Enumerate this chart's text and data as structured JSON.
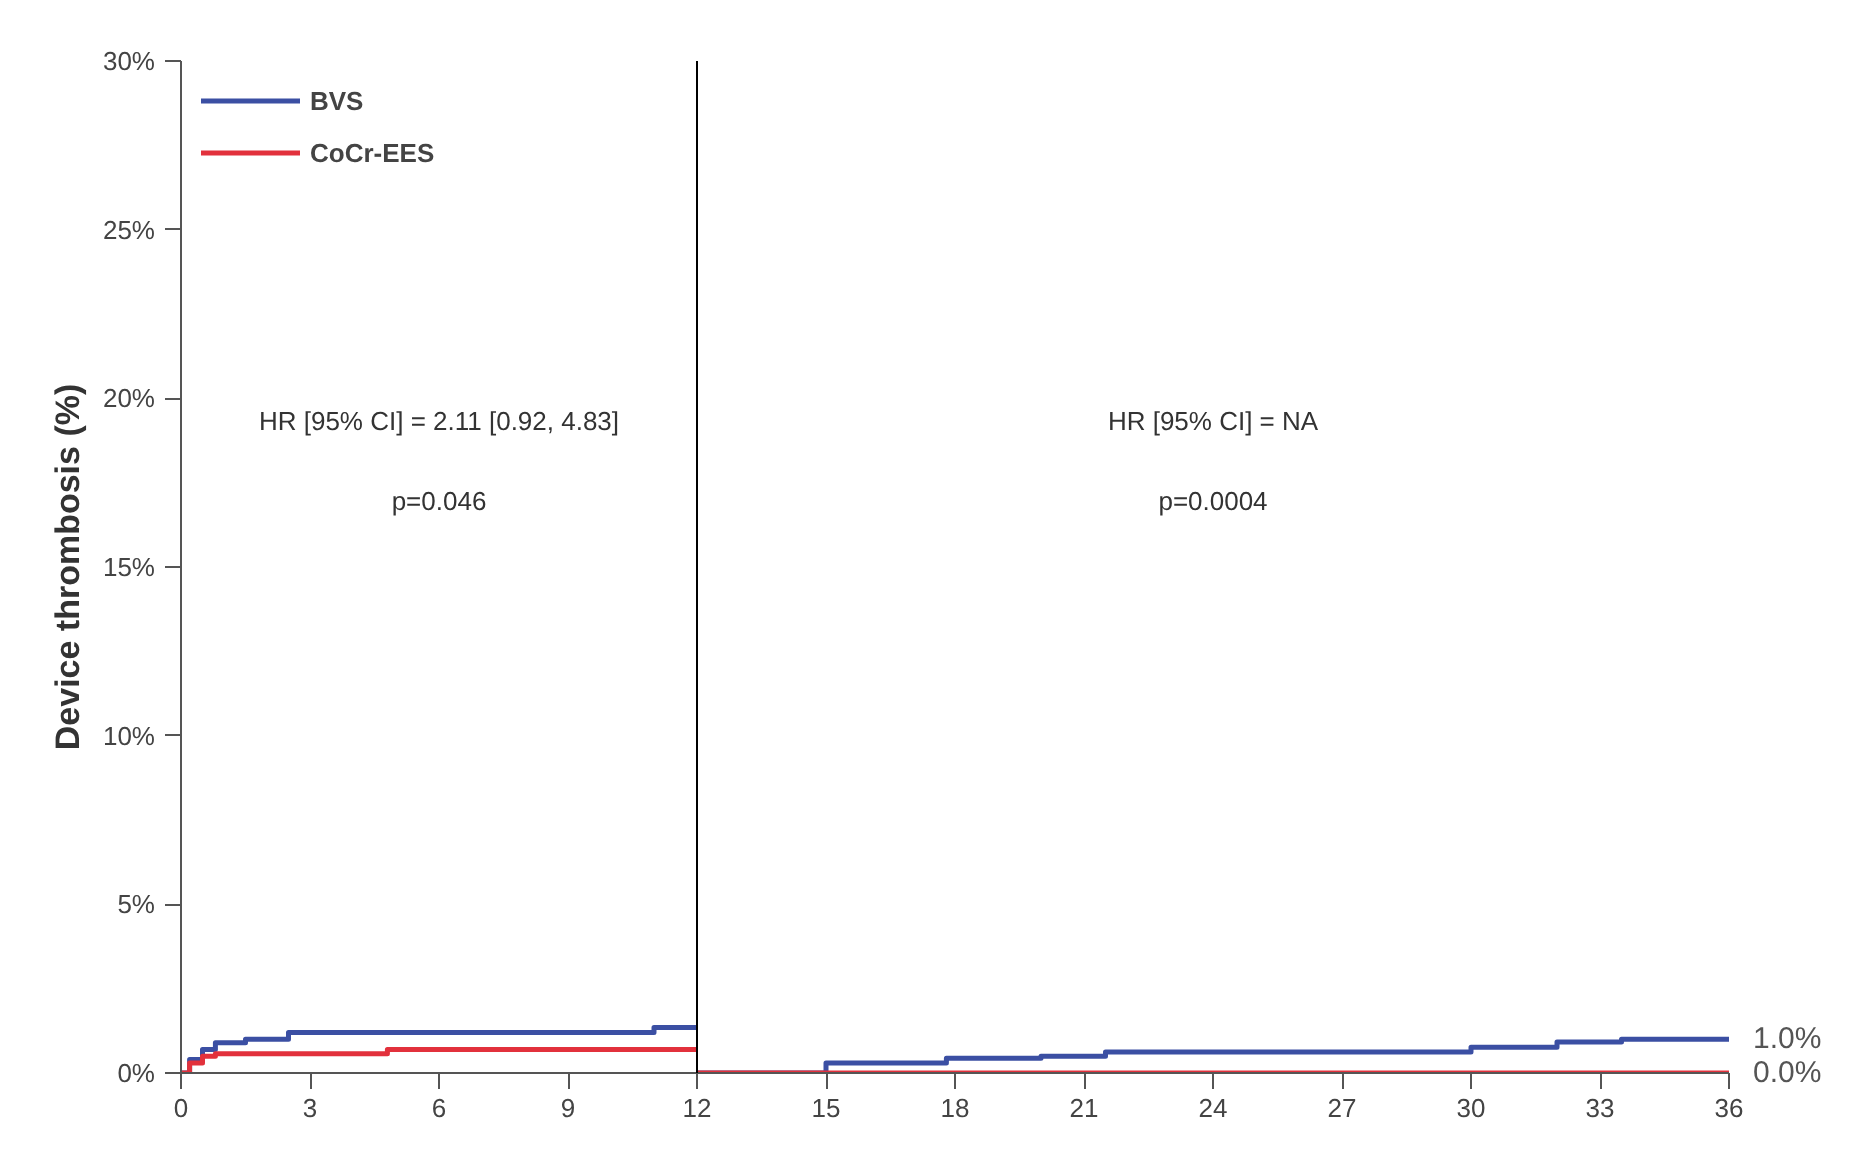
{
  "chart_data": {
    "type": "step",
    "ylabel": "Device thrombosis (%)",
    "series": [
      {
        "name": "BVS",
        "color": "#3b4fa3",
        "x": [
          0,
          0.2,
          0.5,
          0.8,
          1.5,
          2.5,
          11,
          12
        ],
        "values": [
          0,
          0.4,
          0.7,
          0.9,
          1.0,
          1.2,
          1.35,
          1.35
        ]
      },
      {
        "name": "CoCr-EES",
        "color": "#e2313c",
        "x": [
          0,
          0.2,
          0.5,
          0.8,
          4.8,
          12
        ],
        "values": [
          0,
          0.3,
          0.5,
          0.57,
          0.7,
          0.7
        ]
      },
      {
        "color": "#3b4fa3",
        "x": [
          12,
          15,
          17.8,
          20,
          21.5,
          30,
          32,
          33.5,
          36
        ],
        "values": [
          0,
          0.3,
          0.44,
          0.5,
          0.62,
          0.76,
          0.92,
          1.0,
          1.0
        ]
      },
      {
        "color": "#e2313c",
        "x": [
          12,
          36
        ],
        "values": [
          0,
          0
        ]
      }
    ],
    "xlim": [
      0,
      36
    ],
    "xticks": [
      0,
      3,
      6,
      9,
      12,
      15,
      18,
      21,
      24,
      27,
      30,
      33,
      36
    ],
    "ylim": [
      0,
      30
    ],
    "yticks": [
      {
        "value": 0,
        "label": "0%"
      },
      {
        "value": 5,
        "label": "5%"
      },
      {
        "value": 10,
        "label": "10%"
      },
      {
        "value": 15,
        "label": "15%"
      },
      {
        "value": 20,
        "label": "20%"
      },
      {
        "value": 25,
        "label": "25%"
      },
      {
        "value": 30,
        "label": "30%"
      }
    ],
    "ref_lines": [
      {
        "axis": "x",
        "value": 12,
        "color": "#000000"
      }
    ],
    "annotations": [
      "HR [95% CI] = 2.11 [0.92, 4.83]",
      "p=0.046",
      "HR [95% CI] = NA",
      "p=0.0004",
      {
        "text": "1.0%",
        "x": 36,
        "y": 1.0
      },
      {
        "text": "0.0%",
        "x": 36,
        "y": 0
      }
    ],
    "grid": false,
    "legend": "top left",
    "line_style": "solid",
    "marker": "none"
  }
}
